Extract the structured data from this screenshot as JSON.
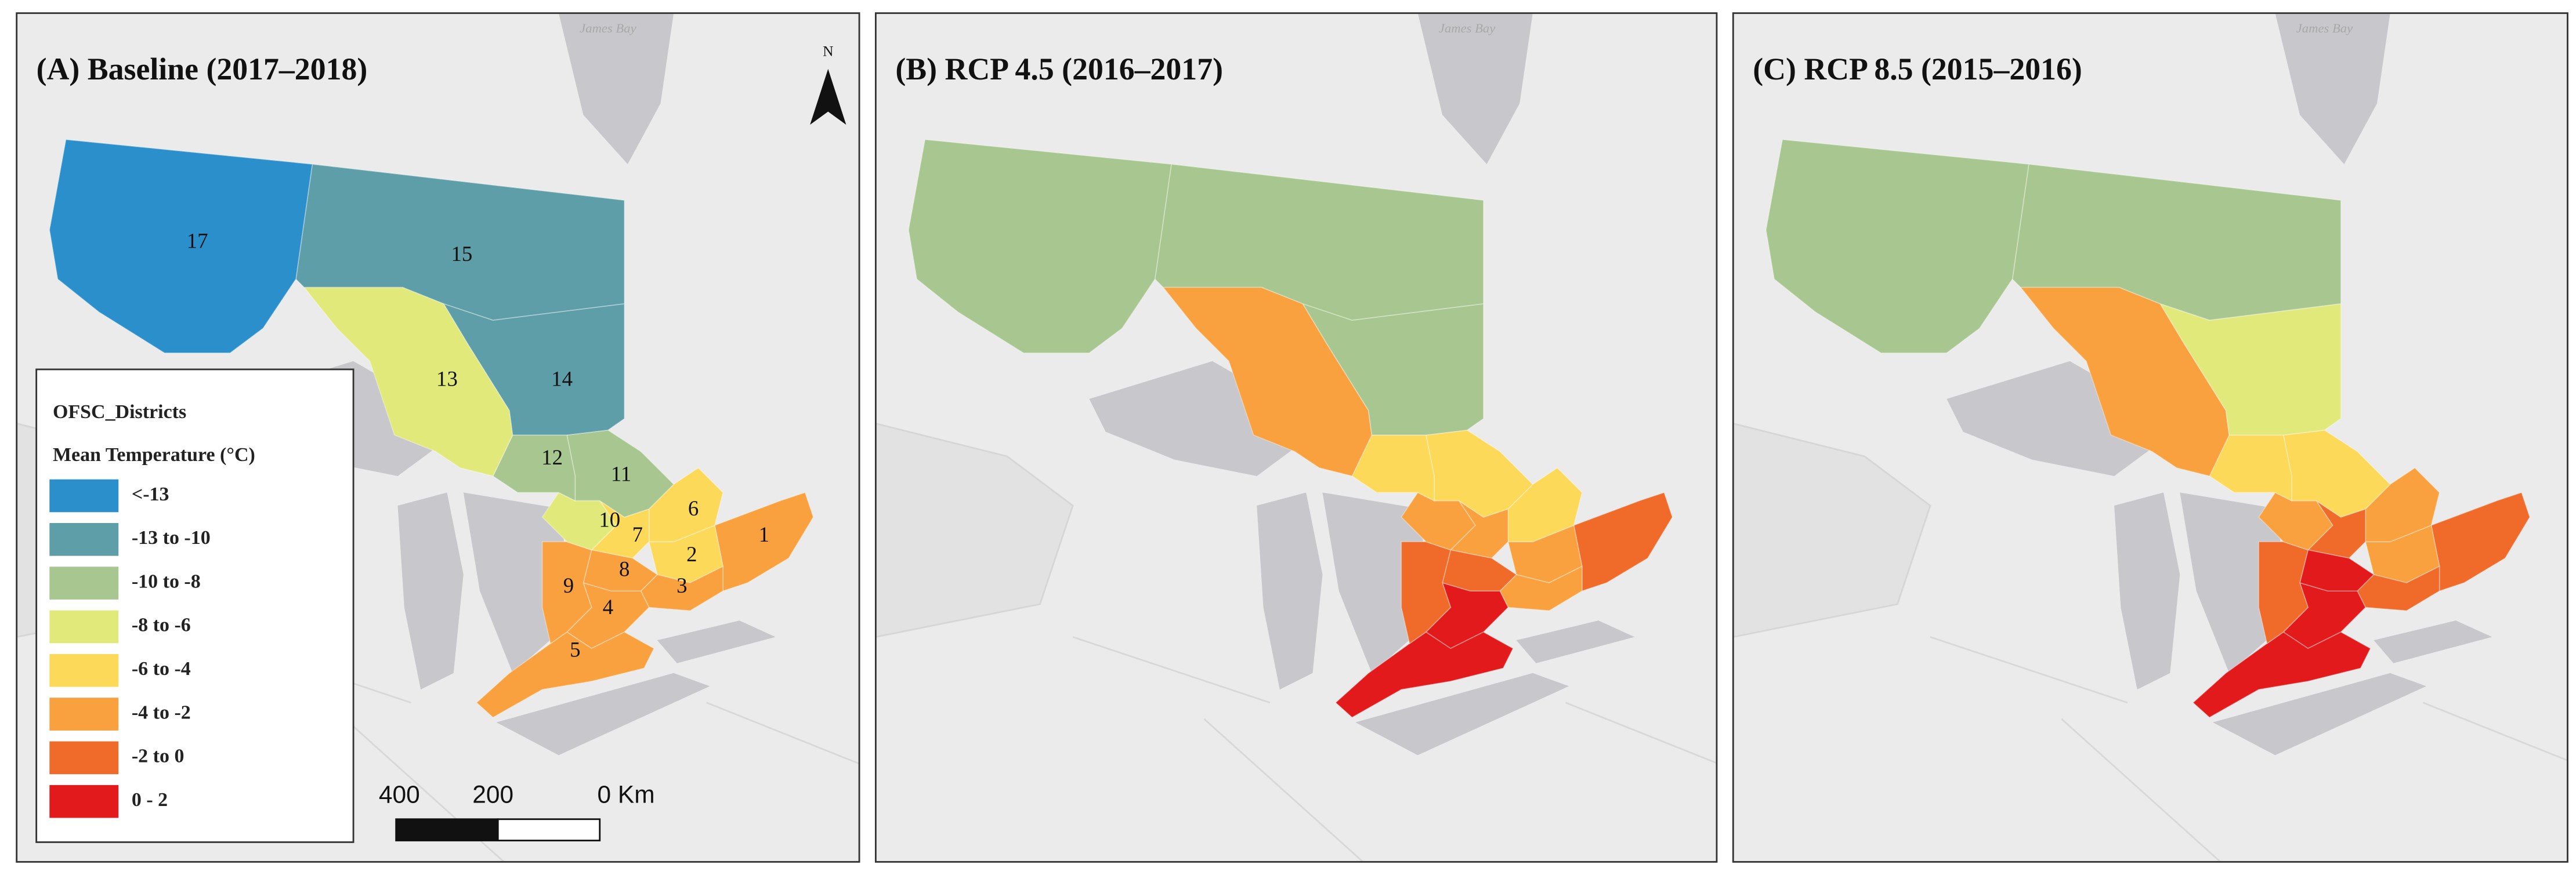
{
  "map_labels": {
    "water": "James Bay",
    "north": "N"
  },
  "districts": [
    "1",
    "2",
    "3",
    "4",
    "5",
    "6",
    "7",
    "8",
    "9",
    "10",
    "11",
    "12",
    "13",
    "14",
    "15",
    "17"
  ],
  "panels": [
    {
      "title": "(A) Baseline (2017–2018)",
      "classes": [
        "-4 to -2",
        "-6 to -4",
        "-4 to -2",
        "-4 to -2",
        "-4 to -2",
        "-6 to -4",
        "-6 to -4",
        "-4 to -2",
        "-4 to -2",
        "-8 to -6",
        "-10 to -8",
        "-10 to -8",
        "-8 to -6",
        "-13 to -10",
        "-13 to -10",
        "<-13"
      ]
    },
    {
      "title": "(B) RCP 4.5 (2016–2017)",
      "classes": [
        "-2 to 0",
        "-4 to -2",
        "-4 to -2",
        "0 - 2",
        "0 - 2",
        "-6 to -4",
        "-4 to -2",
        "-2 to 0",
        "-2 to 0",
        "-4 to -2",
        "-6 to -4",
        "-6 to -4",
        "-4 to -2",
        "-10 to -8",
        "-10 to -8",
        "-10 to -8"
      ]
    },
    {
      "title": "(C) RCP 8.5 (2015–2016)",
      "classes": [
        "-2 to 0",
        "-4 to -2",
        "-2 to 0",
        "0 - 2",
        "0 - 2",
        "-4 to -2",
        "-2 to 0",
        "0 - 2",
        "-2 to 0",
        "-4 to -2",
        "-6 to -4",
        "-6 to -4",
        "-4 to -2",
        "-8 to -6",
        "-10 to -8",
        "-10 to -8"
      ]
    }
  ],
  "legend": {
    "title": "OFSC_Districts",
    "subtitle": "Mean Temperature (°C)",
    "classes": [
      {
        "label": "<-13",
        "color": "#2b8fcb"
      },
      {
        "label": "-13 to -10",
        "color": "#5e9ea8"
      },
      {
        "label": "-10 to -8",
        "color": "#a8c68f"
      },
      {
        "label": "-8 to -6",
        "color": "#e1e97a"
      },
      {
        "label": "-6 to -4",
        "color": "#fdd95a"
      },
      {
        "label": "-4 to -2",
        "color": "#f9a13f"
      },
      {
        "label": "-2 to 0",
        "color": "#f06a2a"
      },
      {
        "label": "0 - 2",
        "color": "#e31a1c"
      }
    ]
  },
  "scale_bar": {
    "labels": [
      "400",
      "200",
      "0 Km"
    ]
  }
}
